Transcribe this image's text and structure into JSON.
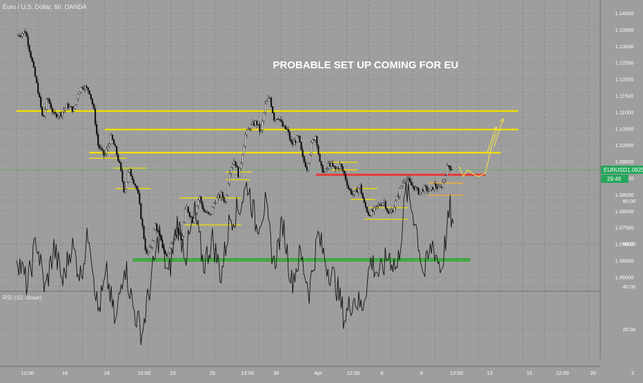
{
  "header": {
    "symbol_title": "Euro / U.S. Dollar, 60, OANDA"
  },
  "annotation": {
    "text": "PROBABLE SET UP COMING FOR EU"
  },
  "price_tag": {
    "symbol": "EURUSD",
    "price": "1.09252",
    "countdown": "29:49"
  },
  "rsi_pane": {
    "label": "RSI (10, close)"
  },
  "colors": {
    "background": "#9e9e9e",
    "grid": "#7a7a7a",
    "candle": "#111111",
    "rsi_line": "#111111",
    "yellow_level": "#f2e000",
    "red_level": "#e53935",
    "green_level": "#3fb03f",
    "price_tag": "#26a65b",
    "projection": "#f4e14a",
    "annotation_text": "#ffffff"
  },
  "chart_data": {
    "type": "candlestick",
    "y_axis": {
      "ticks": [
        "1.14000",
        "1.13500",
        "1.13000",
        "1.12500",
        "1.12000",
        "1.11500",
        "1.11000",
        "1.10500",
        "1.10000",
        "1.09500",
        "1.09000",
        "1.08500",
        "1.08000",
        "1.07500",
        "1.07000",
        "1.06500",
        "1.06000"
      ],
      "tick_values": [
        1.14,
        1.135,
        1.13,
        1.125,
        1.12,
        1.115,
        1.11,
        1.105,
        1.1,
        1.095,
        1.09,
        1.085,
        1.08,
        1.075,
        1.07,
        1.065,
        1.06
      ]
    },
    "x_axis": {
      "ticks": [
        "12:00",
        "16",
        "18",
        "12:00",
        "23",
        "25",
        "12:00",
        "30",
        "Apr",
        "12:00",
        "6",
        "8",
        "12:00",
        "13",
        "15",
        "12:00",
        "20",
        "2"
      ],
      "tick_positions": [
        0.5,
        2.2,
        4.1,
        5.8,
        7.1,
        8.9,
        10.5,
        11.8,
        13.7,
        15.3,
        16.6,
        18.4,
        20.0,
        21.5,
        23.3,
        24.8,
        26.2,
        28.0
      ]
    },
    "price_path": [
      [
        0.0,
        1.133
      ],
      [
        0.4,
        1.1345
      ],
      [
        0.7,
        1.1255
      ],
      [
        1.0,
        1.1155
      ],
      [
        1.2,
        1.1075
      ],
      [
        1.4,
        1.1145
      ],
      [
        1.7,
        1.109
      ],
      [
        2.0,
        1.1095
      ],
      [
        2.3,
        1.112
      ],
      [
        2.6,
        1.1105
      ],
      [
        2.8,
        1.116
      ],
      [
        3.0,
        1.118
      ],
      [
        3.3,
        1.1165
      ],
      [
        3.5,
        1.111
      ],
      [
        3.7,
        1.1
      ],
      [
        4.0,
        1.0965
      ],
      [
        4.3,
        1.1025
      ],
      [
        4.5,
        1.0985
      ],
      [
        4.7,
        1.0935
      ],
      [
        4.9,
        1.0855
      ],
      [
        5.1,
        1.0925
      ],
      [
        5.3,
        1.0895
      ],
      [
        5.5,
        1.086
      ],
      [
        5.7,
        1.076
      ],
      [
        5.9,
        1.0665
      ],
      [
        6.1,
        1.069
      ],
      [
        6.3,
        1.076
      ],
      [
        6.5,
        1.072
      ],
      [
        6.8,
        1.066
      ],
      [
        7.0,
        1.0695
      ],
      [
        7.3,
        1.075
      ],
      [
        7.5,
        1.0705
      ],
      [
        7.7,
        1.0815
      ],
      [
        8.0,
        1.077
      ],
      [
        8.3,
        1.0845
      ],
      [
        8.5,
        1.08
      ],
      [
        8.8,
        1.0785
      ],
      [
        9.0,
        1.083
      ],
      [
        9.3,
        1.085
      ],
      [
        9.5,
        1.0825
      ],
      [
        9.7,
        1.093
      ],
      [
        9.9,
        1.0955
      ],
      [
        10.1,
        1.0905
      ],
      [
        10.4,
        1.103
      ],
      [
        10.6,
        1.1055
      ],
      [
        10.9,
        1.107
      ],
      [
        11.1,
        1.1035
      ],
      [
        11.3,
        1.112
      ],
      [
        11.5,
        1.1145
      ],
      [
        11.7,
        1.108
      ],
      [
        11.9,
        1.1085
      ],
      [
        12.1,
        1.1055
      ],
      [
        12.3,
        1.1045
      ],
      [
        12.5,
        1.1
      ],
      [
        12.8,
        1.1025
      ],
      [
        13.0,
        1.096
      ],
      [
        13.2,
        1.093
      ],
      [
        13.4,
        1.1005
      ],
      [
        13.6,
        1.103
      ],
      [
        13.8,
        1.0935
      ],
      [
        14.0,
        1.0915
      ],
      [
        14.2,
        1.0945
      ],
      [
        14.5,
        1.0925
      ],
      [
        14.7,
        1.094
      ],
      [
        14.9,
        1.091
      ],
      [
        15.1,
        1.0865
      ],
      [
        15.3,
        1.085
      ],
      [
        15.6,
        1.0875
      ],
      [
        15.8,
        1.082
      ],
      [
        16.0,
        1.079
      ],
      [
        16.2,
        1.08
      ],
      [
        16.4,
        1.0815
      ],
      [
        16.7,
        1.083
      ],
      [
        16.9,
        1.079
      ],
      [
        17.1,
        1.0805
      ],
      [
        17.3,
        1.084
      ],
      [
        17.5,
        1.088
      ],
      [
        17.7,
        1.0905
      ],
      [
        17.9,
        1.088
      ],
      [
        18.1,
        1.087
      ],
      [
        18.3,
        1.0855
      ],
      [
        18.5,
        1.087
      ],
      [
        18.8,
        1.086
      ],
      [
        19.0,
        1.088
      ],
      [
        19.2,
        1.0865
      ],
      [
        19.4,
        1.089
      ],
      [
        19.6,
        1.094
      ],
      [
        19.8,
        1.0925
      ]
    ],
    "rsi": {
      "ticks": [
        "80.00",
        "60.00",
        "40.00",
        "20.00"
      ],
      "tick_values": [
        80,
        60,
        40,
        20
      ],
      "path": [
        [
          0.0,
          55
        ],
        [
          0.5,
          40
        ],
        [
          0.9,
          62
        ],
        [
          1.3,
          38
        ],
        [
          1.7,
          58
        ],
        [
          2.1,
          42
        ],
        [
          2.5,
          60
        ],
        [
          2.9,
          45
        ],
        [
          3.3,
          66
        ],
        [
          3.7,
          28
        ],
        [
          4.1,
          45
        ],
        [
          4.5,
          22
        ],
        [
          4.9,
          52
        ],
        [
          5.3,
          30
        ],
        [
          5.7,
          18
        ],
        [
          6.1,
          42
        ],
        [
          6.5,
          65
        ],
        [
          6.9,
          44
        ],
        [
          7.3,
          70
        ],
        [
          7.7,
          55
        ],
        [
          8.1,
          74
        ],
        [
          8.5,
          50
        ],
        [
          8.9,
          62
        ],
        [
          9.3,
          45
        ],
        [
          9.7,
          72
        ],
        [
          10.1,
          76
        ],
        [
          10.5,
          88
        ],
        [
          10.9,
          68
        ],
        [
          11.3,
          78
        ],
        [
          11.7,
          50
        ],
        [
          12.1,
          70
        ],
        [
          12.5,
          42
        ],
        [
          12.9,
          55
        ],
        [
          13.3,
          38
        ],
        [
          13.7,
          64
        ],
        [
          14.1,
          50
        ],
        [
          14.5,
          42
        ],
        [
          14.9,
          25
        ],
        [
          15.3,
          35
        ],
        [
          15.7,
          30
        ],
        [
          16.1,
          52
        ],
        [
          16.5,
          45
        ],
        [
          16.9,
          55
        ],
        [
          17.3,
          48
        ],
        [
          17.7,
          85
        ],
        [
          18.1,
          72
        ],
        [
          18.5,
          45
        ],
        [
          18.9,
          60
        ],
        [
          19.3,
          48
        ],
        [
          19.7,
          76
        ],
        [
          19.9,
          62
        ]
      ]
    },
    "levels": [
      {
        "color": "yellow",
        "price": 1.1103,
        "x_from": 0.0,
        "x_to": 22.8
      },
      {
        "color": "yellow",
        "price": 1.1047,
        "x_from": 4.0,
        "x_to": 22.8
      },
      {
        "color": "yellow",
        "price": 1.0977,
        "x_from": 3.3,
        "x_to": 22.0
      },
      {
        "color": "red",
        "price": 1.091,
        "x_from": 13.6,
        "x_to": 21.3
      },
      {
        "color": "green",
        "price": 1.0652,
        "x_from": 5.3,
        "x_to": 20.6
      },
      {
        "color": "yellow",
        "price": 1.096,
        "x_from": 3.3,
        "x_to": 5.0
      },
      {
        "color": "yellow",
        "price": 1.093,
        "x_from": 4.4,
        "x_to": 5.9
      },
      {
        "color": "yellow",
        "price": 1.0868,
        "x_from": 4.5,
        "x_to": 6.1
      },
      {
        "color": "yellow",
        "price": 1.084,
        "x_from": 7.4,
        "x_to": 10.2
      },
      {
        "color": "yellow",
        "price": 1.0758,
        "x_from": 7.6,
        "x_to": 10.2
      },
      {
        "color": "yellow",
        "price": 1.0918,
        "x_from": 9.5,
        "x_to": 10.7
      },
      {
        "color": "yellow",
        "price": 1.0895,
        "x_from": 9.5,
        "x_to": 10.6
      },
      {
        "color": "yellow",
        "price": 1.0948,
        "x_from": 14.3,
        "x_to": 15.5
      },
      {
        "color": "yellow",
        "price": 1.0925,
        "x_from": 14.3,
        "x_to": 15.5
      },
      {
        "color": "yellow",
        "price": 1.0868,
        "x_from": 15.3,
        "x_to": 16.4
      },
      {
        "color": "yellow",
        "price": 1.0835,
        "x_from": 15.2,
        "x_to": 16.3
      },
      {
        "color": "yellow",
        "price": 1.081,
        "x_from": 16.0,
        "x_to": 17.8
      },
      {
        "color": "yellow",
        "price": 1.0775,
        "x_from": 15.8,
        "x_to": 17.8
      },
      {
        "color": "orange",
        "price": 1.0885,
        "x_from": 18.7,
        "x_to": 20.3
      },
      {
        "color": "orange",
        "price": 1.0848,
        "x_from": 18.7,
        "x_to": 20.3
      }
    ],
    "projection": [
      [
        20.1,
        1.0935
      ],
      [
        20.3,
        1.0905
      ],
      [
        20.5,
        1.0925
      ],
      [
        20.8,
        1.091
      ],
      [
        21.0,
        1.0905
      ],
      [
        21.3,
        1.0915
      ],
      [
        21.6,
        1.1
      ],
      [
        21.8,
        1.1035
      ]
    ],
    "projection_arrows": [
      {
        "from": [
          21.4,
          1.098
        ],
        "to": [
          21.8,
          1.1055
        ]
      },
      {
        "from": [
          21.7,
          1.0995
        ],
        "to": [
          22.1,
          1.108
        ]
      }
    ],
    "grid": true
  }
}
